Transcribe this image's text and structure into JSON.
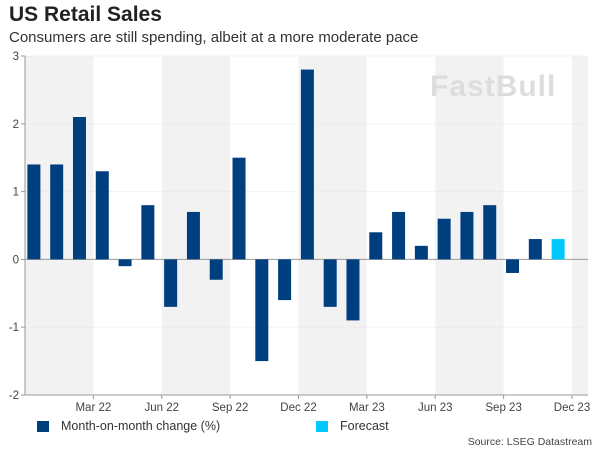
{
  "title": "US Retail Sales",
  "subtitle": "Consumers are still spending, albeit at a more moderate pace",
  "source": "Source: LSEG Datastream",
  "watermark": "FastBull",
  "colors": {
    "actual": "#003f7f",
    "forecast": "#00c8ff",
    "band": "#f2f2f2"
  },
  "chart_data": {
    "type": "bar",
    "ylim": [
      -2,
      3
    ],
    "yticks": [
      "3",
      "2",
      "1",
      "0",
      "-1",
      "-2"
    ],
    "ytick_values": [
      3,
      2,
      1,
      0,
      -1,
      -2
    ],
    "xtick_labels": [
      "Mar 22",
      "Jun 22",
      "Sep 22",
      "Dec 22",
      "Mar 23",
      "Jun 23",
      "Sep 23",
      "Dec 23"
    ],
    "grid": true,
    "legend_placement": "bottom",
    "series": [
      {
        "name": "Month-on-month change (%)",
        "values": [
          1.4,
          1.4,
          2.1,
          1.3,
          -0.1,
          0.8,
          -0.7,
          0.7,
          -0.3,
          1.5,
          -1.5,
          -0.6,
          2.8,
          -0.7,
          -0.9,
          0.4,
          0.7,
          0.2,
          0.6,
          0.7,
          0.8,
          -0.2,
          0.3,
          null
        ]
      },
      {
        "name": "Forecast",
        "values": [
          null,
          null,
          null,
          null,
          null,
          null,
          null,
          null,
          null,
          null,
          null,
          null,
          null,
          null,
          null,
          null,
          null,
          null,
          null,
          null,
          null,
          null,
          null,
          0.3
        ]
      }
    ]
  }
}
